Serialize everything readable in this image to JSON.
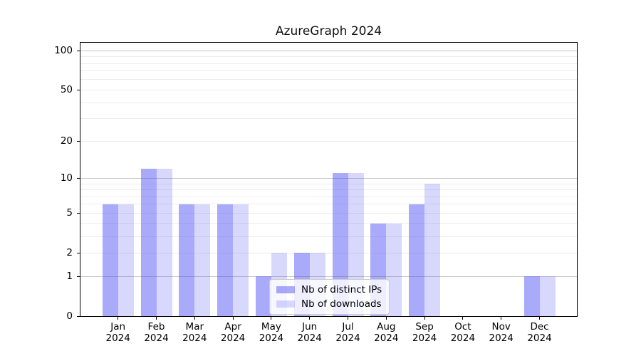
{
  "chart_data": {
    "type": "bar",
    "title": "AzureGraph 2024",
    "categories": [
      "Jan",
      "Feb",
      "Mar",
      "Apr",
      "May",
      "Jun",
      "Jul",
      "Aug",
      "Sep",
      "Oct",
      "Nov",
      "Dec"
    ],
    "year_label": "2024",
    "series": [
      {
        "name": "Nb of distinct IPs",
        "key": "ips",
        "color": "rgba(70,70,244,0.46)",
        "values": [
          6,
          12,
          6,
          6,
          1,
          2,
          11,
          4,
          6,
          0,
          0,
          1
        ]
      },
      {
        "name": "Nb of downloads",
        "key": "downloads",
        "color": "rgba(70,70,244,0.21)",
        "values": [
          6,
          12,
          6,
          6,
          2,
          2,
          11,
          4,
          9,
          0,
          0,
          1
        ]
      }
    ],
    "y_scale": "log1p",
    "y_ticks": [
      0,
      1,
      2,
      5,
      10,
      20,
      50,
      100
    ],
    "y_major_gridlines": [
      1,
      10,
      100
    ],
    "y_minor_gridlines": [
      2,
      3,
      4,
      5,
      6,
      7,
      8,
      9,
      20,
      30,
      40,
      50,
      60,
      70,
      80,
      90
    ],
    "ylim": [
      0,
      115
    ],
    "grid": true,
    "legend_position": "lower-center-inside",
    "colors": {
      "bar_dark": "#aaaaf6",
      "bar_light": "#d9d9fa",
      "major_grid": "#c6c6c6",
      "minor_grid": "#ececec",
      "spine": "#000000",
      "text": "#000000",
      "legend_border": "#cccccc"
    }
  }
}
